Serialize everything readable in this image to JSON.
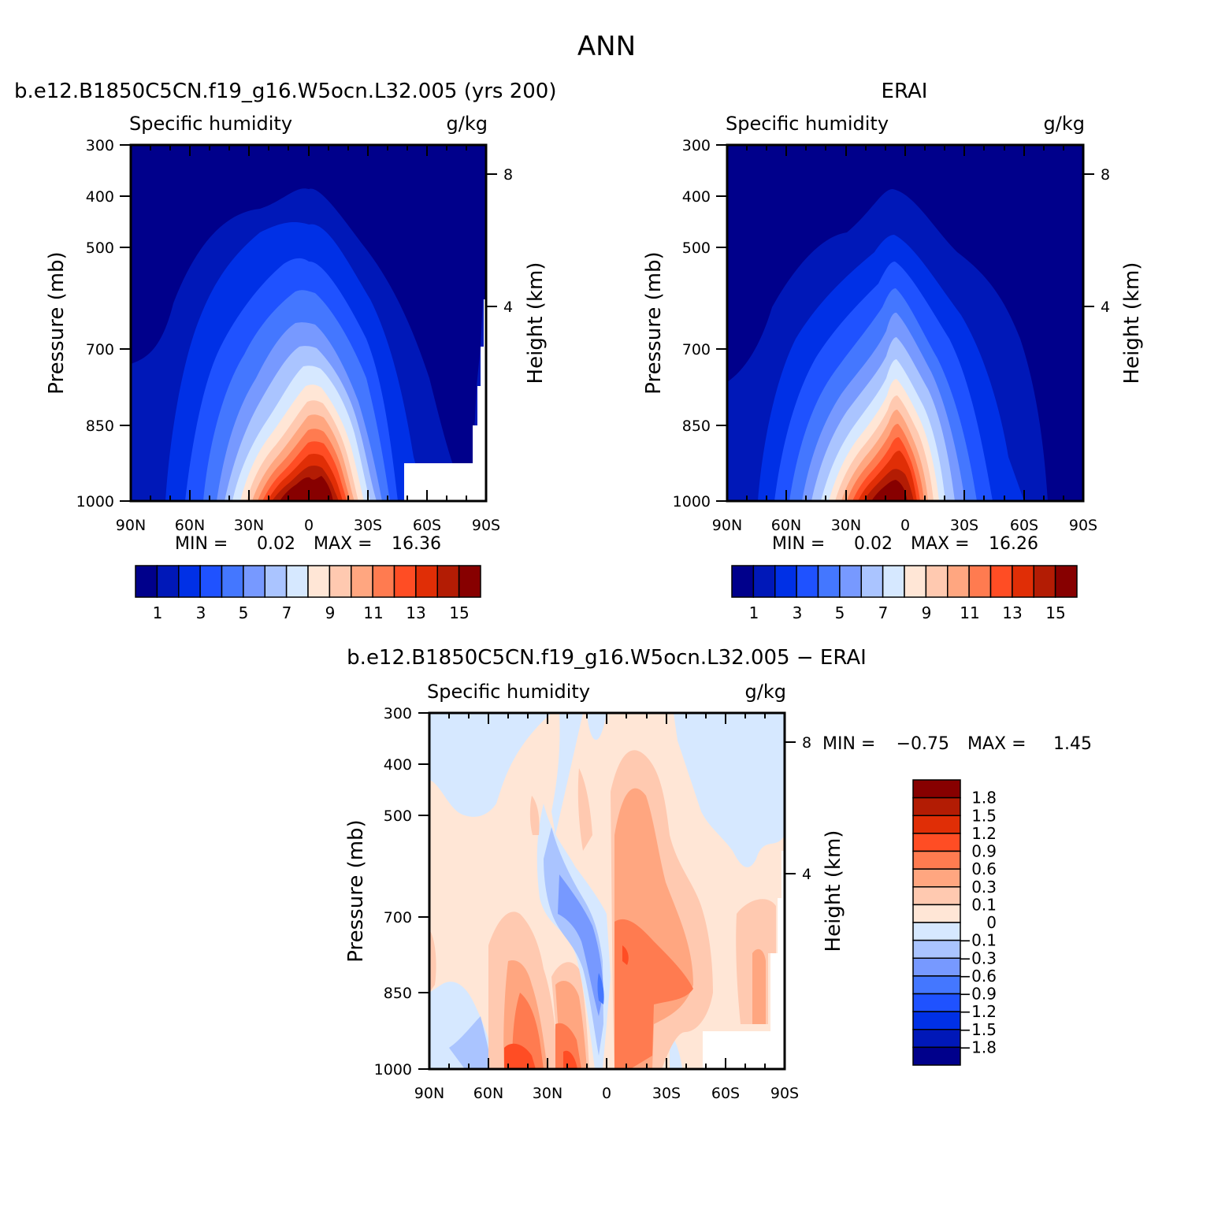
{
  "figure": {
    "season": "ANN",
    "panel_titles": [
      "b.e12.B1850C5CN.f19_g16.W5ocn.L32.005 (yrs 200)",
      "ERAI",
      "b.e12.B1850C5CN.f19_g16.W5ocn.L32.005 − ERAI"
    ]
  },
  "chart_data": [
    {
      "type": "heatmap",
      "title": "b.e12.B1850C5CN.f19_g16.W5ocn.L32.005 (yrs 200)",
      "variable": "Specific humidity",
      "units": "g/kg",
      "xlabel": "",
      "ylabel": "Pressure (mb)",
      "ylabel_right": "Height (km)",
      "x_ticks": [
        "90N",
        "60N",
        "30N",
        "0",
        "30S",
        "60S",
        "90S"
      ],
      "y_ticks": [
        "300",
        "400",
        "500",
        "700",
        "850",
        "1000"
      ],
      "y_right_ticks": [
        "8",
        "4"
      ],
      "ylim": [
        1000,
        300
      ],
      "stats": {
        "min_label": "MIN =",
        "min": "0.02",
        "max_label": "MAX =",
        "max": "16.36"
      },
      "colorbar_ticks": [
        "1",
        "3",
        "5",
        "7",
        "9",
        "11",
        "13",
        "15"
      ],
      "colorbar_colors": [
        "#00008b",
        "#0018b8",
        "#0030e6",
        "#1f52ff",
        "#4477ff",
        "#7799ff",
        "#aac4ff",
        "#d6e8ff",
        "#ffe6d6",
        "#ffc9b0",
        "#ffa680",
        "#ff7b50",
        "#ff4d24",
        "#e02e06",
        "#b31c04",
        "#870000"
      ],
      "peak_location": "0"
    },
    {
      "type": "heatmap",
      "title": "ERAI",
      "variable": "Specific humidity",
      "units": "g/kg",
      "xlabel": "",
      "ylabel": "Pressure (mb)",
      "ylabel_right": "Height (km)",
      "x_ticks": [
        "90N",
        "60N",
        "30N",
        "0",
        "30S",
        "60S",
        "90S"
      ],
      "y_ticks": [
        "300",
        "400",
        "500",
        "700",
        "850",
        "1000"
      ],
      "y_right_ticks": [
        "8",
        "4"
      ],
      "ylim": [
        1000,
        300
      ],
      "stats": {
        "min_label": "MIN =",
        "min": "0.02",
        "max_label": "MAX =",
        "max": "16.26"
      },
      "colorbar_ticks": [
        "1",
        "3",
        "5",
        "7",
        "9",
        "11",
        "13",
        "15"
      ],
      "colorbar_colors": [
        "#00008b",
        "#0018b8",
        "#0030e6",
        "#1f52ff",
        "#4477ff",
        "#7799ff",
        "#aac4ff",
        "#d6e8ff",
        "#ffe6d6",
        "#ffc9b0",
        "#ffa680",
        "#ff7b50",
        "#ff4d24",
        "#e02e06",
        "#b31c04",
        "#870000"
      ]
    },
    {
      "type": "heatmap",
      "title": "b.e12.B1850C5CN.f19_g16.W5ocn.L32.005 − ERAI",
      "variable": "Specific humidity",
      "units": "g/kg",
      "xlabel": "",
      "ylabel": "Pressure (mb)",
      "ylabel_right": "Height (km)",
      "x_ticks": [
        "90N",
        "60N",
        "30N",
        "0",
        "30S",
        "60S",
        "90S"
      ],
      "y_ticks": [
        "300",
        "400",
        "500",
        "700",
        "850",
        "1000"
      ],
      "y_right_ticks": [
        "8",
        "4"
      ],
      "ylim": [
        1000,
        300
      ],
      "stats": {
        "min_label": "MIN =",
        "min": "−0.75",
        "max_label": "MAX =",
        "max": "1.45"
      },
      "colorbar_ticks": [
        "1.8",
        "1.5",
        "1.2",
        "0.9",
        "0.6",
        "0.3",
        "0.1",
        "0",
        "−0.1",
        "−0.3",
        "−0.6",
        "−0.9",
        "−1.2",
        "−1.5",
        "−1.8"
      ],
      "colorbar_colors": [
        "#870000",
        "#b31c04",
        "#e02e06",
        "#ff4d24",
        "#ff7b50",
        "#ffa680",
        "#ffc9b0",
        "#ffe6d6",
        "#d6e8ff",
        "#aac4ff",
        "#7799ff",
        "#4477ff",
        "#1f52ff",
        "#0030e6",
        "#0018b8",
        "#00008b"
      ]
    }
  ]
}
